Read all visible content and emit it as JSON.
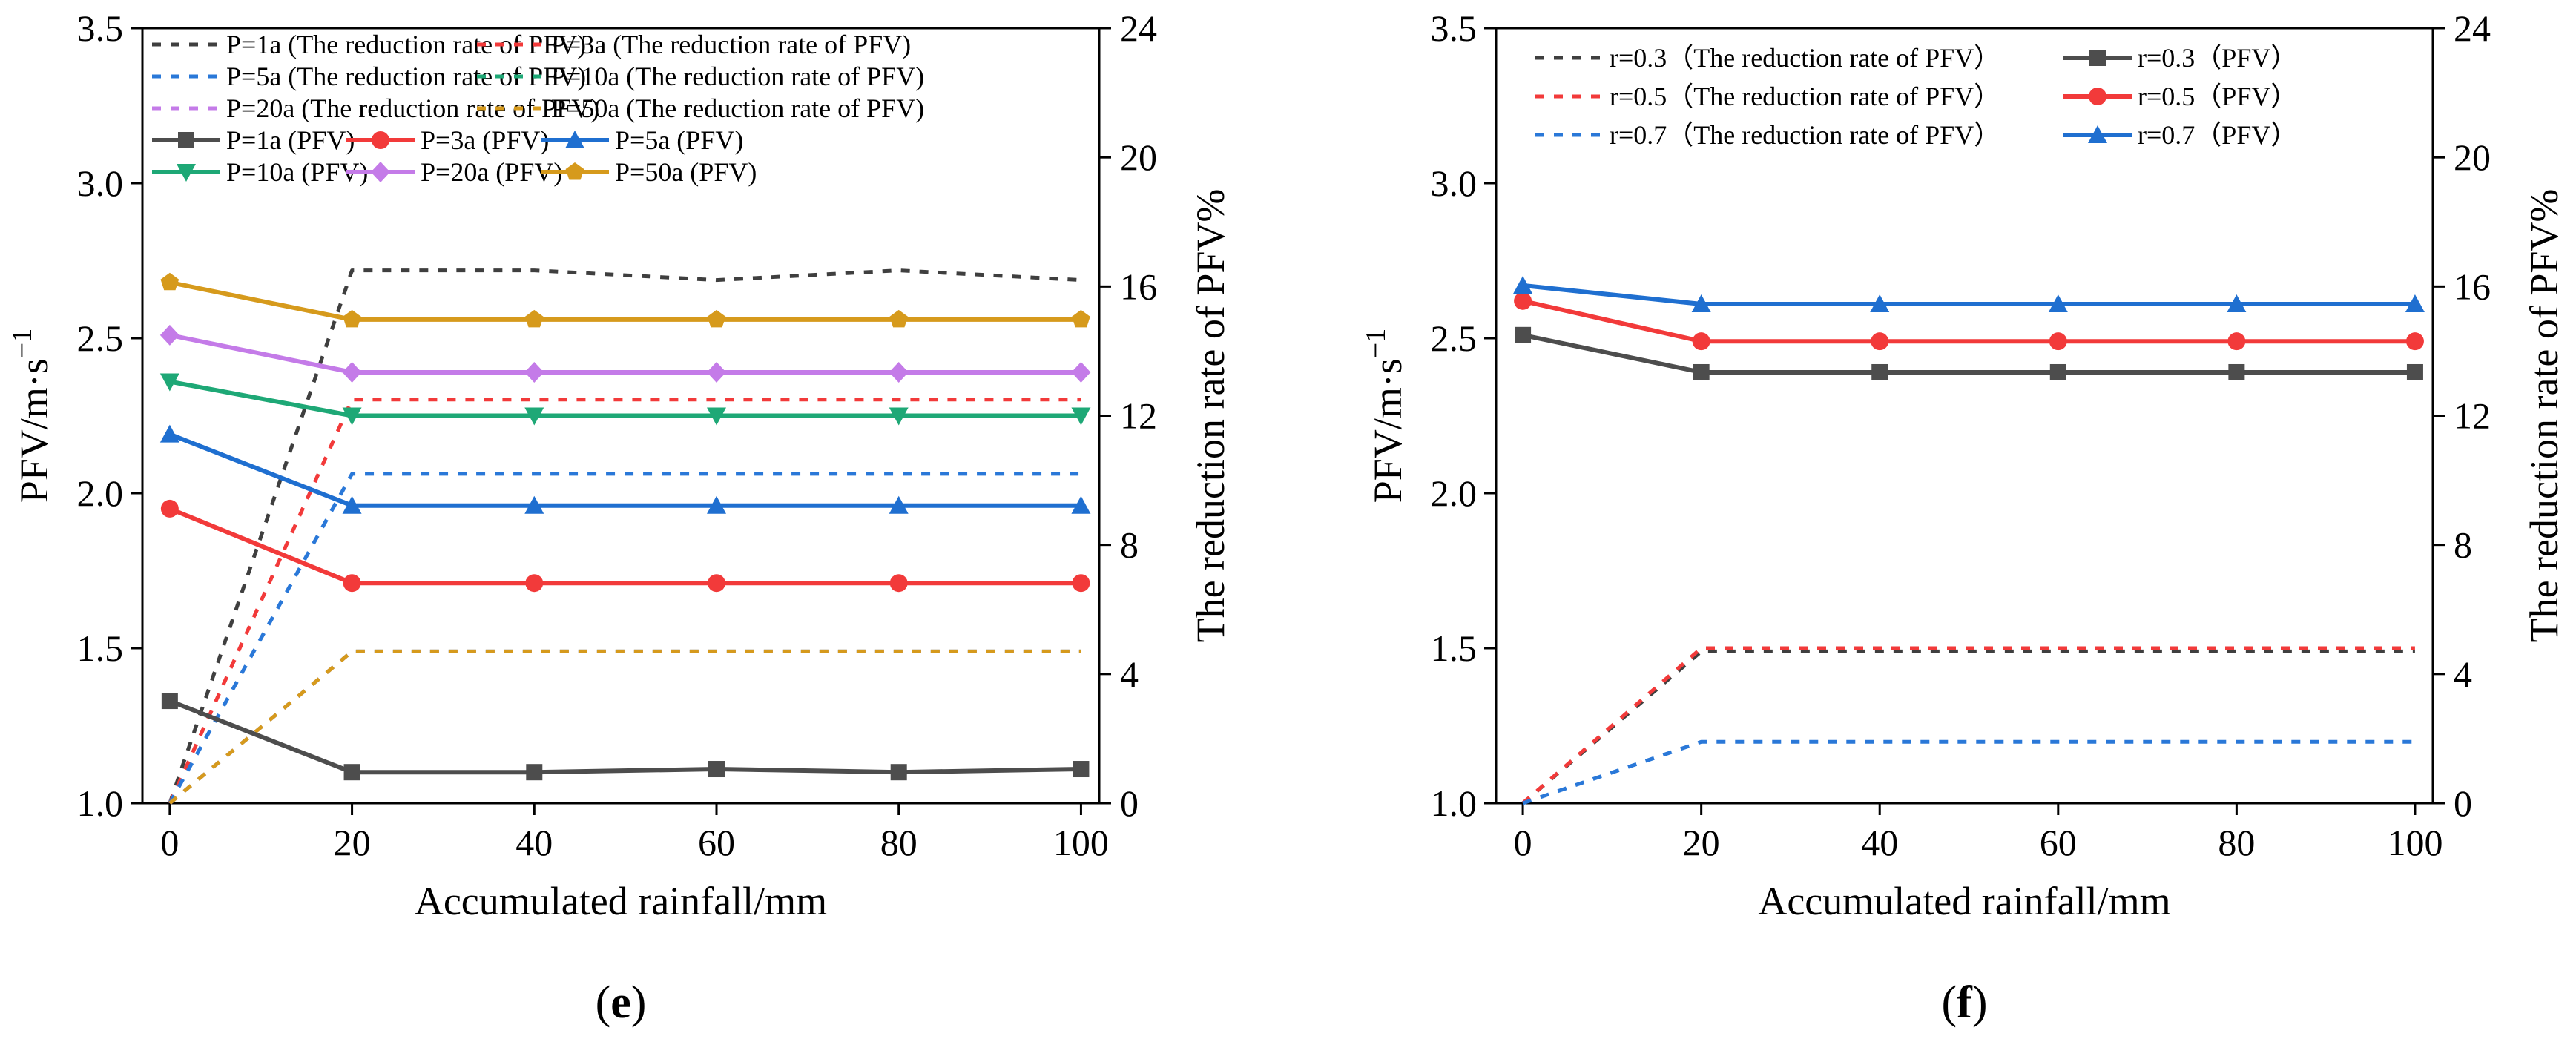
{
  "chart_data": [
    {
      "type": "line",
      "panel_label": {
        "open": "(",
        "letter": "e",
        "close": ")"
      },
      "xlabel": "Accumulated rainfall/mm",
      "ylabel_left": {
        "main": "PFV/m·s",
        "sup": "−1"
      },
      "ylabel_right": "The reduction rate of PFV%",
      "xlim": [
        -3,
        102
      ],
      "ylim_left": [
        1.0,
        3.5
      ],
      "ylim_right": [
        0,
        24
      ],
      "xticks": [
        0,
        20,
        40,
        60,
        80,
        100
      ],
      "yticks_left": [
        "1.0",
        "1.5",
        "2.0",
        "2.5",
        "3.0",
        "3.5"
      ],
      "yticks_right": [
        "0",
        "4",
        "8",
        "12",
        "16",
        "20",
        "24"
      ],
      "legend_columns": 2,
      "legend_cols_per_row": [
        2,
        2,
        2,
        3,
        3
      ],
      "series": [
        {
          "name": "P=1a (The reduction rate of PFV)",
          "axis": "right",
          "style": "dash",
          "marker": "none",
          "color": "#3f3f3f",
          "x": [
            0,
            20,
            40,
            60,
            80,
            100
          ],
          "y": [
            0,
            16.5,
            16.5,
            16.2,
            16.5,
            16.2
          ]
        },
        {
          "name": "P=3a (The reduction rate of PFV)",
          "axis": "right",
          "style": "dash",
          "marker": "none",
          "color": "#f23a3a",
          "x": [
            0,
            20,
            40,
            60,
            80,
            100
          ],
          "y": [
            0,
            12.5,
            12.5,
            12.5,
            12.5,
            12.5
          ]
        },
        {
          "name": "P=5a (The reduction rate of PFV)",
          "axis": "right",
          "style": "dash",
          "marker": "none",
          "color": "#2a78d8",
          "x": [
            0,
            20,
            40,
            60,
            80,
            100
          ],
          "y": [
            0,
            10.2,
            10.2,
            10.2,
            10.2,
            10.2
          ]
        },
        {
          "name": "P=10a (The reduction rate of PFV)",
          "axis": "right",
          "style": "dash",
          "marker": "none",
          "color": "#1ea876",
          "x": [
            0,
            20,
            40,
            60,
            80,
            100
          ],
          "y": [
            0,
            4.7,
            4.7,
            4.7,
            4.7,
            4.7
          ]
        },
        {
          "name": "P=20a (The reduction rate of PFV)",
          "axis": "right",
          "style": "dash",
          "marker": "none",
          "color": "#c47be8",
          "x": [
            0,
            20,
            40,
            60,
            80,
            100
          ],
          "y": [
            0,
            4.7,
            4.7,
            4.7,
            4.7,
            4.7
          ]
        },
        {
          "name": "P=50a (The reduction rate of PFV)",
          "axis": "right",
          "style": "dash",
          "marker": "none",
          "color": "#d69a1c",
          "x": [
            0,
            20,
            40,
            60,
            80,
            100
          ],
          "y": [
            0,
            4.7,
            4.7,
            4.7,
            4.7,
            4.7
          ]
        },
        {
          "name": "P=1a (PFV)",
          "axis": "left",
          "style": "solid",
          "marker": "square",
          "color": "#4d4d4d",
          "x": [
            0,
            20,
            40,
            60,
            80,
            100
          ],
          "y": [
            1.33,
            1.1,
            1.1,
            1.11,
            1.1,
            1.11
          ]
        },
        {
          "name": "P=3a (PFV)",
          "axis": "left",
          "style": "solid",
          "marker": "circle",
          "color": "#f23a3a",
          "x": [
            0,
            20,
            40,
            60,
            80,
            100
          ],
          "y": [
            1.95,
            1.71,
            1.71,
            1.71,
            1.71,
            1.71
          ]
        },
        {
          "name": "P=5a (PFV)",
          "axis": "left",
          "style": "solid",
          "marker": "triangle",
          "color": "#1f6fd0",
          "x": [
            0,
            20,
            40,
            60,
            80,
            100
          ],
          "y": [
            2.19,
            1.96,
            1.96,
            1.96,
            1.96,
            1.96
          ]
        },
        {
          "name": "P=10a (PFV)",
          "axis": "left",
          "style": "solid",
          "marker": "triangle-down",
          "color": "#1ea876",
          "x": [
            0,
            20,
            40,
            60,
            80,
            100
          ],
          "y": [
            2.36,
            2.25,
            2.25,
            2.25,
            2.25,
            2.25
          ]
        },
        {
          "name": "P=20a (PFV)",
          "axis": "left",
          "style": "solid",
          "marker": "diamond",
          "color": "#c47be8",
          "x": [
            0,
            20,
            40,
            60,
            80,
            100
          ],
          "y": [
            2.51,
            2.39,
            2.39,
            2.39,
            2.39,
            2.39
          ]
        },
        {
          "name": "P=50a (PFV)",
          "axis": "left",
          "style": "solid",
          "marker": "pentagon",
          "color": "#d69a1c",
          "x": [
            0,
            20,
            40,
            60,
            80,
            100
          ],
          "y": [
            2.68,
            2.56,
            2.56,
            2.56,
            2.56,
            2.56
          ]
        }
      ]
    },
    {
      "type": "line",
      "panel_label": {
        "open": "(",
        "letter": "f",
        "close": ")"
      },
      "xlabel": "Accumulated rainfall/mm",
      "ylabel_left": {
        "main": "PFV/m·s",
        "sup": "−1"
      },
      "ylabel_right": "The reduction rate of PFV%",
      "xlim": [
        -3,
        102
      ],
      "ylim_left": [
        1.0,
        3.5
      ],
      "ylim_right": [
        0,
        24
      ],
      "xticks": [
        0,
        20,
        40,
        60,
        80,
        100
      ],
      "yticks_left": [
        "1.0",
        "1.5",
        "2.0",
        "2.5",
        "3.0",
        "3.5"
      ],
      "yticks_right": [
        "0",
        "4",
        "8",
        "12",
        "16",
        "20",
        "24"
      ],
      "legend_columns": 2,
      "legend_cols_per_row": [
        2,
        2,
        2
      ],
      "legend_order": [
        0,
        3,
        1,
        4,
        2,
        5
      ],
      "series": [
        {
          "name": "r=0.3（The reduction rate of PFV）",
          "axis": "right",
          "style": "dash",
          "marker": "none",
          "color": "#3f3f3f",
          "x": [
            0,
            20,
            40,
            60,
            80,
            100
          ],
          "y": [
            0,
            4.7,
            4.7,
            4.7,
            4.7,
            4.7
          ]
        },
        {
          "name": "r=0.5（The reduction rate of PFV）",
          "axis": "right",
          "style": "dash",
          "marker": "none",
          "color": "#f23a3a",
          "x": [
            0,
            20,
            40,
            60,
            80,
            100
          ],
          "y": [
            0,
            4.8,
            4.8,
            4.8,
            4.8,
            4.8
          ]
        },
        {
          "name": "r=0.7（The reduction rate of PFV）",
          "axis": "right",
          "style": "dash",
          "marker": "none",
          "color": "#2a78d8",
          "x": [
            0,
            20,
            40,
            60,
            80,
            100
          ],
          "y": [
            0,
            1.9,
            1.9,
            1.9,
            1.9,
            1.9
          ]
        },
        {
          "name": "r=0.3（PFV）",
          "axis": "left",
          "style": "solid",
          "marker": "square",
          "color": "#4d4d4d",
          "x": [
            0,
            20,
            40,
            60,
            80,
            100
          ],
          "y": [
            2.51,
            2.39,
            2.39,
            2.39,
            2.39,
            2.39
          ]
        },
        {
          "name": "r=0.5（PFV）",
          "axis": "left",
          "style": "solid",
          "marker": "circle",
          "color": "#f23a3a",
          "x": [
            0,
            20,
            40,
            60,
            80,
            100
          ],
          "y": [
            2.62,
            2.49,
            2.49,
            2.49,
            2.49,
            2.49
          ]
        },
        {
          "name": "r=0.7（PFV）",
          "axis": "left",
          "style": "solid",
          "marker": "triangle",
          "color": "#1f6fd0",
          "x": [
            0,
            20,
            40,
            60,
            80,
            100
          ],
          "y": [
            2.67,
            2.61,
            2.61,
            2.61,
            2.61,
            2.61
          ]
        }
      ]
    }
  ]
}
